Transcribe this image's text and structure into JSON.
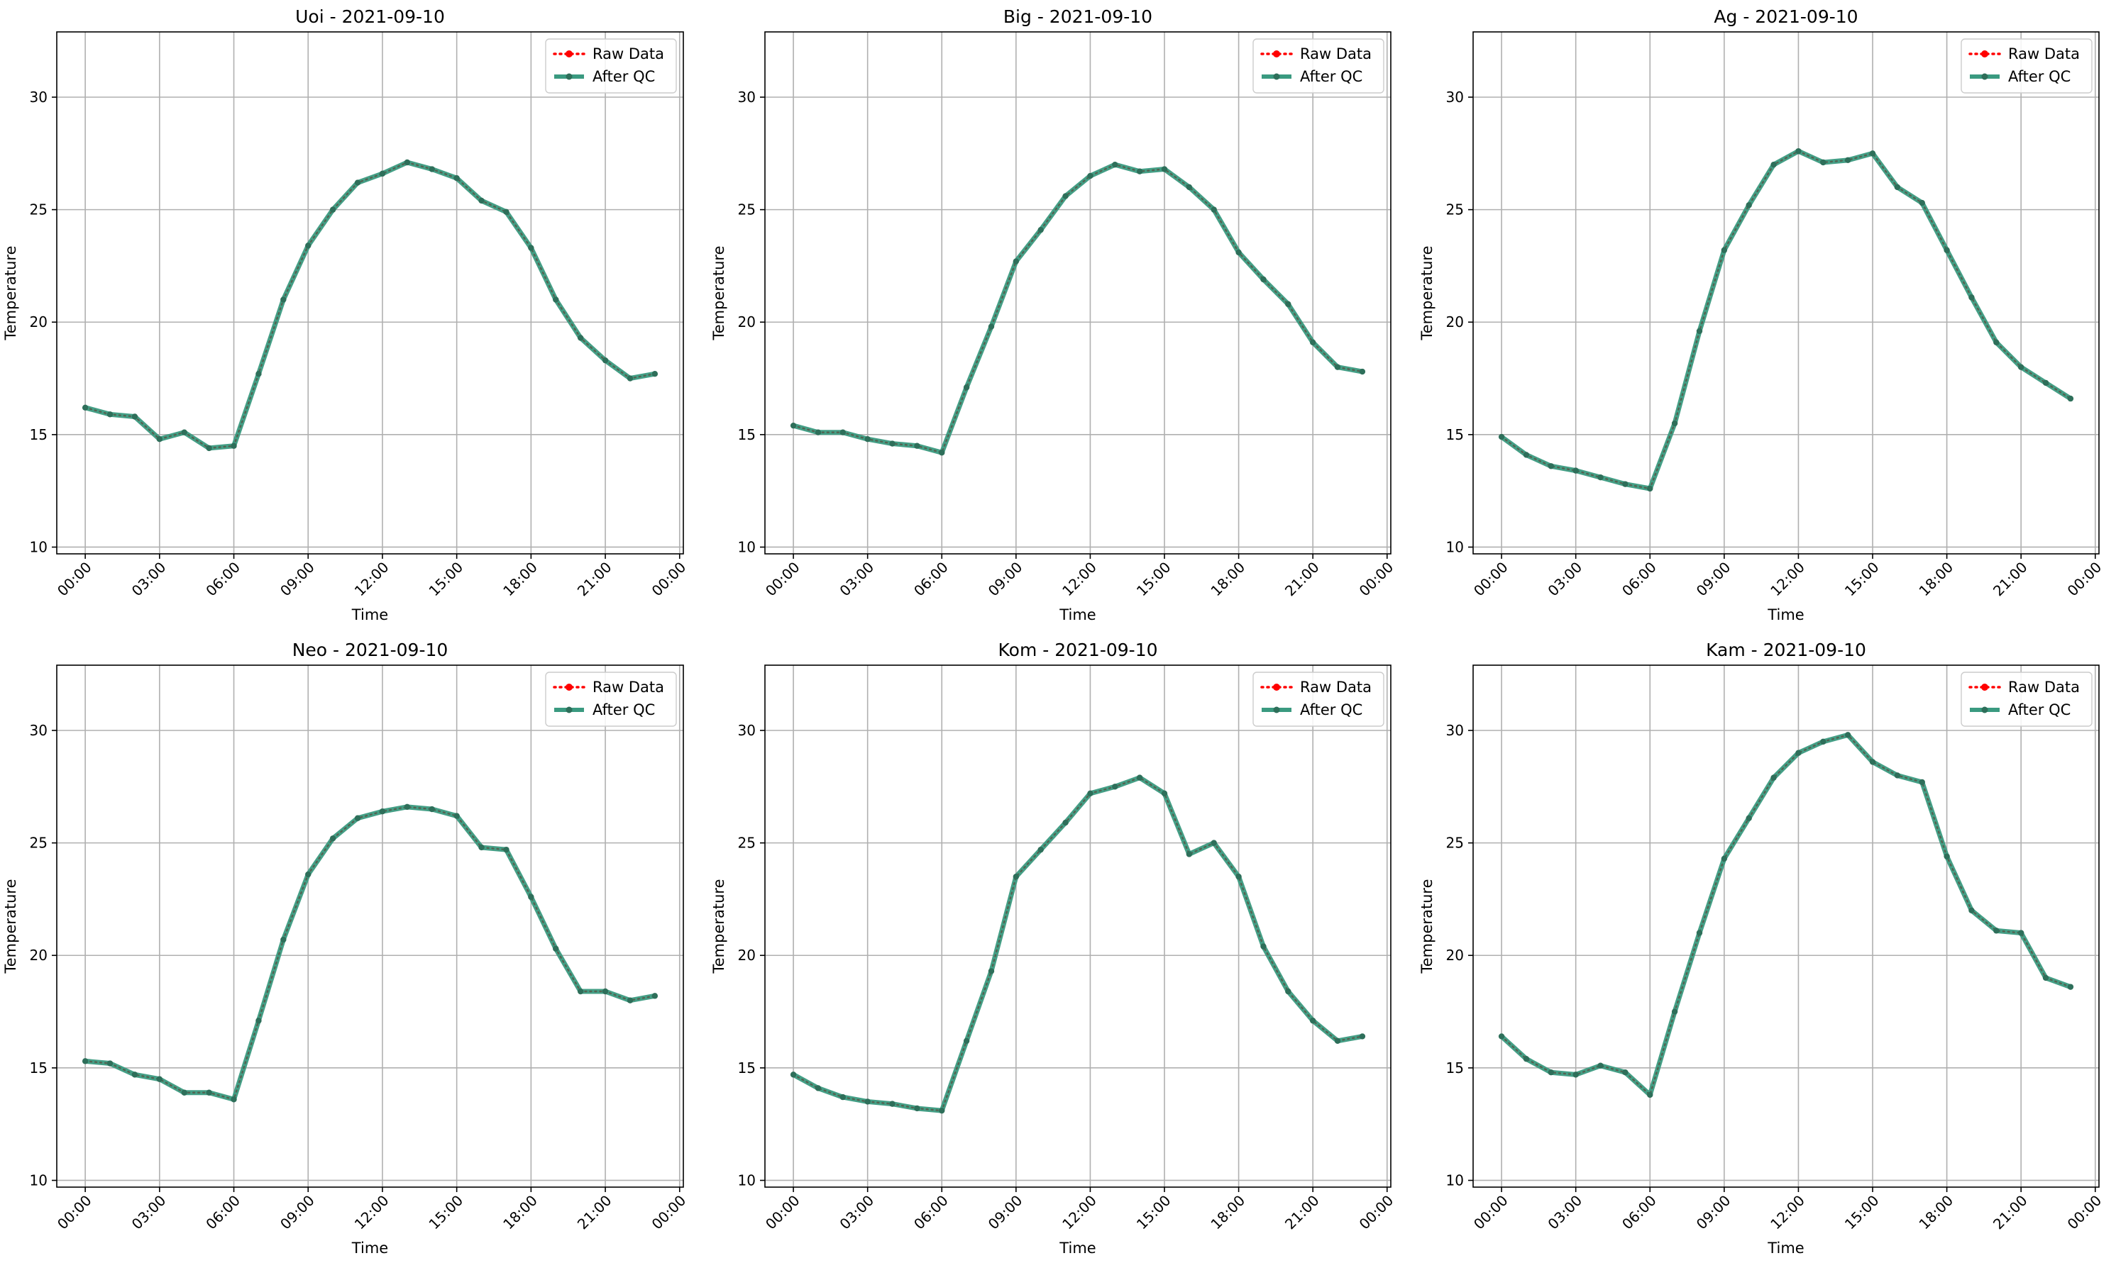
{
  "chart_data": [
    {
      "type": "line",
      "title": "Uoi - 2021-09-10",
      "xlabel": "Time",
      "ylabel": "Temperature",
      "ylim": [
        9.7,
        32.9
      ],
      "yticks": [
        10,
        15,
        20,
        25,
        30
      ],
      "xticks": [
        "00:00",
        "03:00",
        "06:00",
        "09:00",
        "12:00",
        "15:00",
        "18:00",
        "21:00",
        "00:00"
      ],
      "grid": true,
      "legend_position": "upper right",
      "series": [
        {
          "name": "Raw Data",
          "color": "#ff0000",
          "style": "dotted",
          "values": [
            16.2,
            15.9,
            15.8,
            14.8,
            15.1,
            14.4,
            14.5,
            17.7,
            21.0,
            23.4,
            25.0,
            26.2,
            26.6,
            27.1,
            26.8,
            26.4,
            25.4,
            24.9,
            23.3,
            21.0,
            19.3,
            18.3,
            17.5,
            17.7
          ]
        },
        {
          "name": "After QC",
          "color": "#1b8a6b",
          "style": "solid",
          "values": [
            16.2,
            15.9,
            15.8,
            14.8,
            15.1,
            14.4,
            14.5,
            17.7,
            21.0,
            23.4,
            25.0,
            26.2,
            26.6,
            27.1,
            26.8,
            26.4,
            25.4,
            24.9,
            23.3,
            21.0,
            19.3,
            18.3,
            17.5,
            17.7
          ]
        }
      ]
    },
    {
      "type": "line",
      "title": "Big - 2021-09-10",
      "xlabel": "Time",
      "ylabel": "Temperature",
      "ylim": [
        9.7,
        32.9
      ],
      "yticks": [
        10,
        15,
        20,
        25,
        30
      ],
      "xticks": [
        "00:00",
        "03:00",
        "06:00",
        "09:00",
        "12:00",
        "15:00",
        "18:00",
        "21:00",
        "00:00"
      ],
      "grid": true,
      "legend_position": "upper right",
      "series": [
        {
          "name": "Raw Data",
          "color": "#ff0000",
          "style": "dotted",
          "values": [
            15.4,
            15.1,
            15.1,
            14.8,
            14.6,
            14.5,
            14.2,
            17.1,
            19.8,
            22.7,
            24.1,
            25.6,
            26.5,
            27.0,
            26.7,
            26.8,
            26.0,
            25.0,
            23.1,
            21.9,
            20.8,
            19.1,
            18.0,
            17.8
          ]
        },
        {
          "name": "After QC",
          "color": "#1b8a6b",
          "style": "solid",
          "values": [
            15.4,
            15.1,
            15.1,
            14.8,
            14.6,
            14.5,
            14.2,
            17.1,
            19.8,
            22.7,
            24.1,
            25.6,
            26.5,
            27.0,
            26.7,
            26.8,
            26.0,
            25.0,
            23.1,
            21.9,
            20.8,
            19.1,
            18.0,
            17.8
          ]
        }
      ]
    },
    {
      "type": "line",
      "title": "Ag - 2021-09-10",
      "xlabel": "Time",
      "ylabel": "Temperature",
      "ylim": [
        9.7,
        32.9
      ],
      "yticks": [
        10,
        15,
        20,
        25,
        30
      ],
      "xticks": [
        "00:00",
        "03:00",
        "06:00",
        "09:00",
        "12:00",
        "15:00",
        "18:00",
        "21:00",
        "00:00"
      ],
      "grid": true,
      "legend_position": "upper right",
      "series": [
        {
          "name": "Raw Data",
          "color": "#ff0000",
          "style": "dotted",
          "values": [
            14.9,
            14.1,
            13.6,
            13.4,
            13.1,
            12.8,
            12.6,
            15.5,
            19.6,
            23.2,
            25.2,
            27.0,
            27.6,
            27.1,
            27.2,
            27.5,
            26.0,
            25.3,
            23.2,
            21.1,
            19.1,
            18.0,
            17.3,
            16.6
          ]
        },
        {
          "name": "After QC",
          "color": "#1b8a6b",
          "style": "solid",
          "values": [
            14.9,
            14.1,
            13.6,
            13.4,
            13.1,
            12.8,
            12.6,
            15.5,
            19.6,
            23.2,
            25.2,
            27.0,
            27.6,
            27.1,
            27.2,
            27.5,
            26.0,
            25.3,
            23.2,
            21.1,
            19.1,
            18.0,
            17.3,
            16.6
          ]
        }
      ]
    },
    {
      "type": "line",
      "title": "Neo - 2021-09-10",
      "xlabel": "Time",
      "ylabel": "Temperature",
      "ylim": [
        9.7,
        32.9
      ],
      "yticks": [
        10,
        15,
        20,
        25,
        30
      ],
      "xticks": [
        "00:00",
        "03:00",
        "06:00",
        "09:00",
        "12:00",
        "15:00",
        "18:00",
        "21:00",
        "00:00"
      ],
      "grid": true,
      "legend_position": "upper right",
      "series": [
        {
          "name": "Raw Data",
          "color": "#ff0000",
          "style": "dotted",
          "values": [
            15.3,
            15.2,
            14.7,
            14.5,
            13.9,
            13.9,
            13.6,
            17.1,
            20.7,
            23.6,
            25.2,
            26.1,
            26.4,
            26.6,
            26.5,
            26.2,
            24.8,
            24.7,
            22.6,
            20.3,
            18.4,
            18.4,
            18.0,
            18.2
          ]
        },
        {
          "name": "After QC",
          "color": "#1b8a6b",
          "style": "solid",
          "values": [
            15.3,
            15.2,
            14.7,
            14.5,
            13.9,
            13.9,
            13.6,
            17.1,
            20.7,
            23.6,
            25.2,
            26.1,
            26.4,
            26.6,
            26.5,
            26.2,
            24.8,
            24.7,
            22.6,
            20.3,
            18.4,
            18.4,
            18.0,
            18.2
          ]
        }
      ]
    },
    {
      "type": "line",
      "title": "Kom - 2021-09-10",
      "xlabel": "Time",
      "ylabel": "Temperature",
      "ylim": [
        9.7,
        32.9
      ],
      "yticks": [
        10,
        15,
        20,
        25,
        30
      ],
      "xticks": [
        "00:00",
        "03:00",
        "06:00",
        "09:00",
        "12:00",
        "15:00",
        "18:00",
        "21:00",
        "00:00"
      ],
      "grid": true,
      "legend_position": "upper right",
      "series": [
        {
          "name": "Raw Data",
          "color": "#ff0000",
          "style": "dotted",
          "values": [
            14.7,
            14.1,
            13.7,
            13.5,
            13.4,
            13.2,
            13.1,
            16.2,
            19.3,
            23.5,
            24.7,
            25.9,
            27.2,
            27.5,
            27.9,
            27.2,
            24.5,
            25.0,
            23.5,
            20.4,
            18.4,
            17.1,
            16.2,
            16.4
          ]
        },
        {
          "name": "After QC",
          "color": "#1b8a6b",
          "style": "solid",
          "values": [
            14.7,
            14.1,
            13.7,
            13.5,
            13.4,
            13.2,
            13.1,
            16.2,
            19.3,
            23.5,
            24.7,
            25.9,
            27.2,
            27.5,
            27.9,
            27.2,
            24.5,
            25.0,
            23.5,
            20.4,
            18.4,
            17.1,
            16.2,
            16.4
          ]
        }
      ]
    },
    {
      "type": "line",
      "title": "Kam - 2021-09-10",
      "xlabel": "Time",
      "ylabel": "Temperature",
      "ylim": [
        9.7,
        32.9
      ],
      "yticks": [
        10,
        15,
        20,
        25,
        30
      ],
      "xticks": [
        "00:00",
        "03:00",
        "06:00",
        "09:00",
        "12:00",
        "15:00",
        "18:00",
        "21:00",
        "00:00"
      ],
      "grid": true,
      "legend_position": "upper right",
      "series": [
        {
          "name": "Raw Data",
          "color": "#ff0000",
          "style": "dotted",
          "values": [
            16.4,
            15.4,
            14.8,
            14.7,
            15.1,
            14.8,
            13.8,
            17.5,
            21.0,
            24.3,
            26.1,
            27.9,
            29.0,
            29.5,
            29.8,
            28.6,
            28.0,
            27.7,
            24.4,
            22.0,
            21.1,
            21.0,
            19.0,
            18.6
          ]
        },
        {
          "name": "After QC",
          "color": "#1b8a6b",
          "style": "solid",
          "values": [
            16.4,
            15.4,
            14.8,
            14.7,
            15.1,
            14.8,
            13.8,
            17.5,
            21.0,
            24.3,
            26.1,
            27.9,
            29.0,
            29.5,
            29.8,
            28.6,
            28.0,
            27.7,
            24.4,
            22.0,
            21.1,
            21.0,
            19.0,
            18.6
          ]
        }
      ]
    }
  ]
}
